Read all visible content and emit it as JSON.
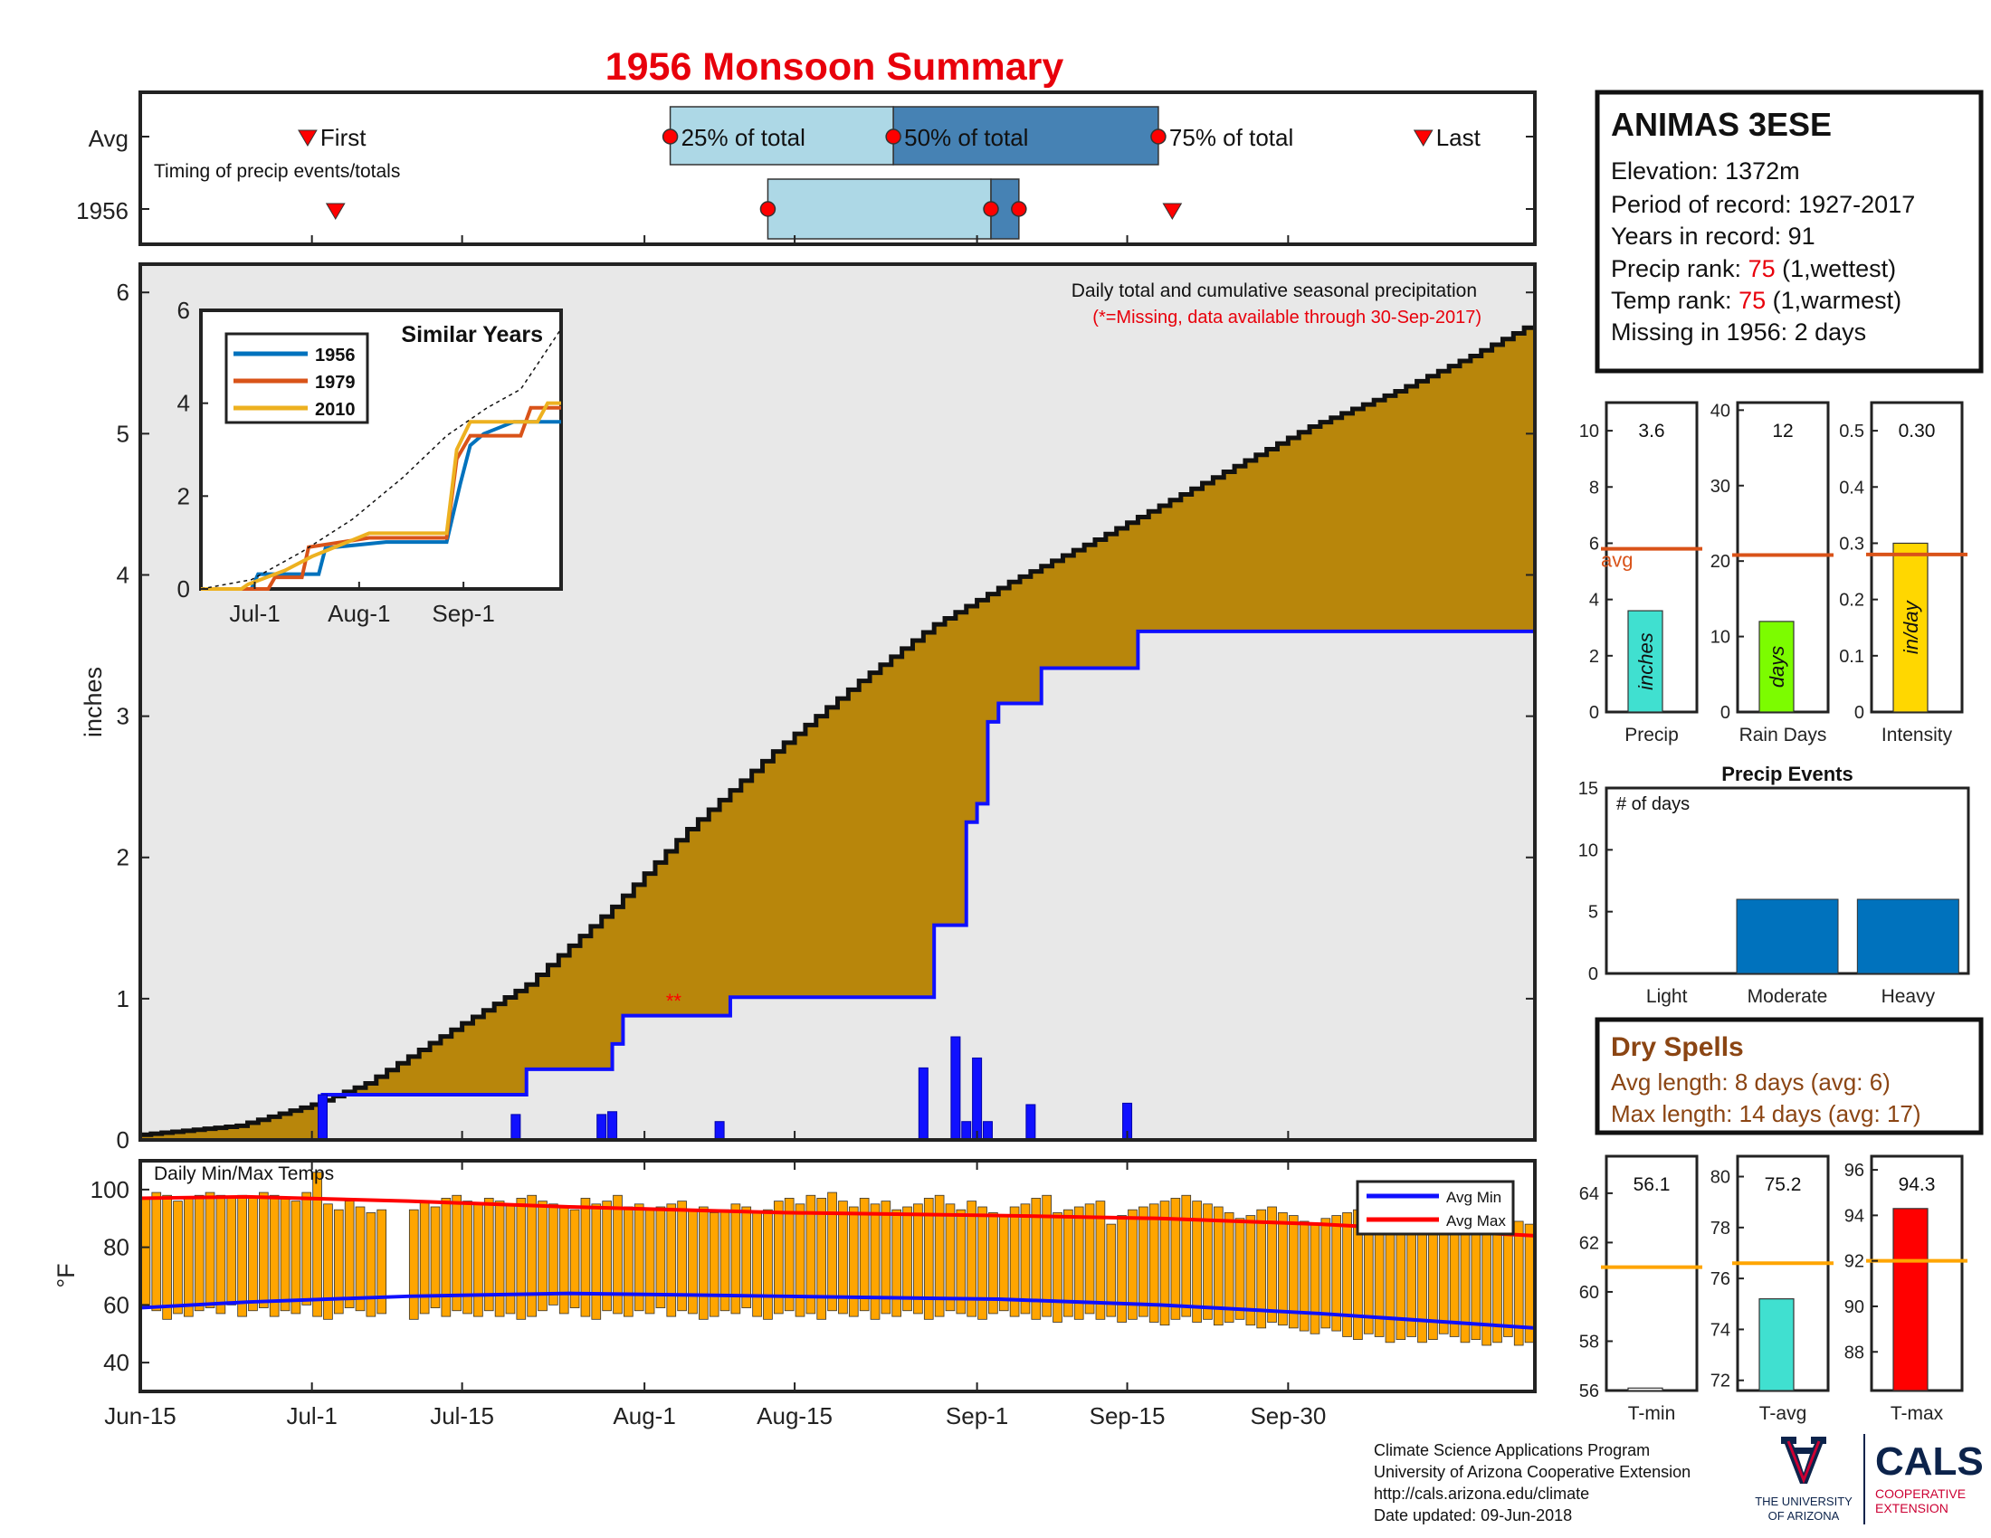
{
  "header": {
    "title": "1956 Monsoon Summary"
  },
  "timing": {
    "row_labels": [
      "Avg",
      "1956"
    ],
    "caption": "Timing of precip events/totals",
    "markers": {
      "first": "First",
      "last": "Last",
      "p25": "25% of total",
      "p50": "50% of total",
      "p75": "75% of total"
    },
    "avg": {
      "first": 12,
      "p25": 38,
      "p50": 54,
      "p75": 73,
      "last": 92
    },
    "year": {
      "first": 14,
      "p25": 45,
      "p50": 61,
      "p75": 63,
      "last": 74
    }
  },
  "main": {
    "caption": "Daily total and cumulative seasonal precipitation",
    "missing_note": "(*=Missing, data available through 30-Sep-2017)",
    "ylabel": "inches",
    "ylim": [
      0,
      6.2
    ],
    "yticks": [
      "0",
      "1",
      "2",
      "3",
      "4",
      "5",
      "6"
    ],
    "missing_mark": "**"
  },
  "date_axis": {
    "start": "Jun-15",
    "labels": [
      "Jun-15",
      "Jul-1",
      "Jul-15",
      "Aug-1",
      "Aug-15",
      "Sep-1",
      "Sep-15",
      "Sep-30"
    ]
  },
  "station": {
    "name": "ANIMAS 3ESE",
    "elevation": "Elevation: 1372m",
    "period": "Period of record: 1927-2017",
    "years": "Years in record: 91",
    "precip_rank_label": "Precip rank: ",
    "precip_rank": "75",
    "precip_rank_suffix": " (1,wettest)",
    "temp_rank_label": "Temp rank: ",
    "temp_rank": "75",
    "temp_rank_suffix": " (1,warmest)",
    "missing": "Missing in 1956: 2 days"
  },
  "mini_precip": [
    {
      "label": "Precip",
      "value_text": "3.6",
      "value": 3.6,
      "avg": 5.8,
      "ylim": [
        0,
        11
      ],
      "ticks": [
        "0",
        "2",
        "4",
        "6",
        "8",
        "10"
      ],
      "unit": "inches",
      "color": "#40E0D0",
      "avg_label": "avg"
    },
    {
      "label": "Rain Days",
      "value_text": "12",
      "value": 12,
      "avg": 20.8,
      "ylim": [
        0,
        41
      ],
      "ticks": [
        "0",
        "10",
        "20",
        "30",
        "40"
      ],
      "unit": "days",
      "color": "#7CFC00"
    },
    {
      "label": "Intensity",
      "value_text": "0.30",
      "value": 0.3,
      "avg": 0.28,
      "ylim": [
        0,
        0.55
      ],
      "ticks": [
        "0",
        "0.1",
        "0.2",
        "0.3",
        "0.4",
        "0.5"
      ],
      "unit": "in/day",
      "color": "#FFD700"
    }
  ],
  "events": {
    "title": "Precip Events",
    "ylabel": "# of days",
    "categories": [
      "Light",
      "Moderate",
      "Heavy"
    ],
    "values": [
      0,
      6,
      6
    ],
    "ylim": [
      0,
      15
    ],
    "ticks": [
      "0",
      "5",
      "10",
      "15"
    ],
    "color": "#0072BD"
  },
  "dry_spells": {
    "title": "Dry Spells",
    "avg_length": "Avg length: 8 days (avg: 6)",
    "max_length": "Max length: 14 days (avg: 17)"
  },
  "temps": {
    "caption": "Daily Min/Max Temps",
    "ylabel": "°F",
    "ylim": [
      30,
      110
    ],
    "ticks": [
      "40",
      "60",
      "80",
      "100"
    ],
    "legend": [
      "Avg Min",
      "Avg Max"
    ]
  },
  "mini_temps": [
    {
      "label": "T-min",
      "value_text": "56.1",
      "value": 56.1,
      "avg": 61.0,
      "ylim": [
        56,
        65.5
      ],
      "ticks": [
        "56",
        "58",
        "60",
        "62",
        "64"
      ],
      "color": "#ffffff"
    },
    {
      "label": "T-avg",
      "value_text": "75.2",
      "value": 75.2,
      "avg": 76.6,
      "ylim": [
        71.6,
        80.8
      ],
      "ticks": [
        "72",
        "74",
        "76",
        "78",
        "80"
      ],
      "color": "#40E0D0"
    },
    {
      "label": "T-max",
      "value_text": "94.3",
      "value": 94.3,
      "avg": 92.0,
      "ylim": [
        86.3,
        96.6
      ],
      "ticks": [
        "88",
        "90",
        "92",
        "94",
        "96"
      ],
      "color": "#ff0000"
    }
  ],
  "similar_years": {
    "title": "Similar Years",
    "ylim": [
      0,
      6
    ],
    "yticks": [
      "0",
      "2",
      "4",
      "6"
    ],
    "xticks": [
      "Jul-1",
      "Aug-1",
      "Sep-1"
    ],
    "series": [
      {
        "name": "1956",
        "color": "#0072BD"
      },
      {
        "name": "1979",
        "color": "#D95319"
      },
      {
        "name": "2010",
        "color": "#EDB120"
      }
    ]
  },
  "footer": {
    "lines": [
      "Climate Science Applications Program",
      "University of Arizona Cooperative Extension",
      "http://cals.arizona.edu/climate",
      " Date updated: 09-Jun-2018"
    ],
    "ua_logo": [
      "THE UNIVERSITY",
      "OF ARIZONA"
    ],
    "cals": "CALS",
    "cals_sub": [
      "COOPERATIVE",
      "EXTENSION"
    ]
  },
  "colors": {
    "cumulative": "#B8860B",
    "avg_cum": "#1010FF",
    "daily": "#1010FF",
    "panel_bg": "#E8E8E8",
    "title": "#E8000B",
    "temp_bar": "#FFA500",
    "avg_line": "#D95319",
    "rank": "#E8000B",
    "dry": "#8B4513"
  },
  "chart_data": {
    "type": "area",
    "title": "1956 Monsoon Summary",
    "xlabel": "",
    "ylabel": "inches",
    "x_range": [
      "Jun-15",
      "Sep-30"
    ],
    "ylim": [
      0,
      6.2
    ],
    "series": [
      {
        "name": "Avg cumulative precip",
        "points": [
          [
            0,
            0.03
          ],
          [
            10,
            0.1
          ],
          [
            17,
            0.25
          ],
          [
            22,
            0.4
          ],
          [
            30,
            0.78
          ],
          [
            37,
            1.1
          ],
          [
            45,
            1.65
          ],
          [
            52,
            2.2
          ],
          [
            60,
            2.75
          ],
          [
            68,
            3.25
          ],
          [
            75,
            3.65
          ],
          [
            82,
            3.95
          ],
          [
            90,
            4.25
          ],
          [
            100,
            4.65
          ],
          [
            110,
            5.05
          ],
          [
            118,
            5.3
          ],
          [
            125,
            5.55
          ],
          [
            130,
            5.75
          ]
        ]
      },
      {
        "name": "1956 cumulative precip",
        "points": [
          [
            0,
            0
          ],
          [
            16,
            0
          ],
          [
            17,
            0.32
          ],
          [
            35,
            0.32
          ],
          [
            36,
            0.5
          ],
          [
            43,
            0.5
          ],
          [
            44,
            0.68
          ],
          [
            45,
            0.88
          ],
          [
            54,
            0.88
          ],
          [
            55,
            1.01
          ],
          [
            73,
            1.01
          ],
          [
            74,
            1.52
          ],
          [
            76,
            1.52
          ],
          [
            77,
            2.25
          ],
          [
            78,
            2.38
          ],
          [
            79,
            2.96
          ],
          [
            80,
            3.09
          ],
          [
            83,
            3.09
          ],
          [
            84,
            3.34
          ],
          [
            92,
            3.34
          ],
          [
            93,
            3.6
          ],
          [
            130,
            3.6
          ]
        ]
      },
      {
        "name": "1956 daily precip",
        "points": [
          [
            17,
            0.32
          ],
          [
            35,
            0.18
          ],
          [
            43,
            0.18
          ],
          [
            44,
            0.2
          ],
          [
            54,
            0.13
          ],
          [
            73,
            0.51
          ],
          [
            76,
            0.73
          ],
          [
            77,
            0.13
          ],
          [
            78,
            0.58
          ],
          [
            79,
            0.13
          ],
          [
            83,
            0.25
          ],
          [
            92,
            0.26
          ]
        ]
      }
    ],
    "temps": {
      "ylim": [
        30,
        110
      ],
      "avg_min": [
        [
          0,
          59
        ],
        [
          10,
          61
        ],
        [
          25,
          63
        ],
        [
          40,
          64
        ],
        [
          60,
          63
        ],
        [
          80,
          62
        ],
        [
          95,
          60
        ],
        [
          110,
          57
        ],
        [
          130,
          52
        ]
      ],
      "avg_max": [
        [
          0,
          97
        ],
        [
          10,
          97.5
        ],
        [
          25,
          96
        ],
        [
          40,
          94
        ],
        [
          60,
          92
        ],
        [
          80,
          91
        ],
        [
          95,
          90
        ],
        [
          110,
          88
        ],
        [
          130,
          84
        ]
      ],
      "daily_min": [
        59,
        58,
        55,
        57,
        56,
        58,
        59,
        57,
        60,
        56,
        58,
        59,
        56,
        58,
        57,
        60,
        56,
        55,
        57,
        59,
        58,
        56,
        57,
        null,
        null,
        55,
        57,
        59,
        56,
        58,
        57,
        56,
        58,
        56,
        57,
        55,
        56,
        58,
        60,
        57,
        59,
        56,
        55,
        58,
        57,
        56,
        58,
        57,
        59,
        56,
        58,
        57,
        55,
        56,
        58,
        57,
        59,
        56,
        55,
        57,
        58,
        56,
        57,
        55,
        58,
        57,
        56,
        58,
        55,
        57,
        56,
        58,
        57,
        55,
        56,
        58,
        57,
        56,
        55,
        57,
        58,
        56,
        57,
        55,
        56,
        54,
        56,
        55,
        57,
        55,
        56,
        54,
        55,
        56,
        54,
        53,
        55,
        56,
        54,
        55,
        53,
        54,
        55,
        53,
        52,
        54,
        53,
        52,
        51,
        50,
        52,
        51,
        49,
        48,
        50,
        49,
        47,
        48,
        49,
        47,
        48,
        50,
        49,
        47,
        48,
        46,
        47,
        49,
        46,
        47,
        48
      ],
      "daily_max": [
        97,
        99,
        98,
        96,
        97,
        98,
        99,
        98,
        97,
        98,
        97,
        99,
        98,
        97,
        96,
        99,
        106,
        95,
        93,
        96,
        94,
        92,
        93,
        null,
        null,
        93,
        96,
        94,
        97,
        98,
        96,
        95,
        97,
        96,
        95,
        97,
        98,
        96,
        95,
        94,
        93,
        97,
        95,
        96,
        98,
        94,
        95,
        93,
        94,
        95,
        96,
        93,
        94,
        92,
        93,
        95,
        94,
        92,
        93,
        96,
        97,
        95,
        98,
        97,
        99,
        96,
        94,
        97,
        95,
        96,
        93,
        94,
        95,
        97,
        98,
        95,
        93,
        96,
        94,
        92,
        91,
        94,
        95,
        97,
        98,
        92,
        93,
        94,
        95,
        96,
        88,
        91,
        93,
        94,
        95,
        96,
        97,
        98,
        96,
        95,
        94,
        92,
        90,
        91,
        93,
        94,
        92,
        91,
        89,
        88,
        90,
        91,
        92,
        93,
        94,
        95,
        96,
        93,
        92,
        90,
        91,
        92,
        93,
        91,
        89,
        90,
        88,
        87,
        89,
        88,
        92
      ]
    },
    "similar_years": {
      "x_months": [
        "Jul-1",
        "Aug-1",
        "Sep-1"
      ],
      "series": [
        {
          "name": "1956",
          "points": [
            [
              0,
              0
            ],
            [
              15,
              0
            ],
            [
              17,
              0.32
            ],
            [
              35,
              0.32
            ],
            [
              37,
              0.88
            ],
            [
              55,
              1.01
            ],
            [
              73,
              1.01
            ],
            [
              77,
              2.25
            ],
            [
              80,
              3.09
            ],
            [
              84,
              3.34
            ],
            [
              93,
              3.6
            ],
            [
              107,
              3.6
            ]
          ]
        },
        {
          "name": "1979",
          "points": [
            [
              0,
              0
            ],
            [
              20,
              0
            ],
            [
              22,
              0.25
            ],
            [
              30,
              0.25
            ],
            [
              32,
              0.9
            ],
            [
              50,
              1.1
            ],
            [
              73,
              1.1
            ],
            [
              76,
              2.8
            ],
            [
              80,
              3.3
            ],
            [
              95,
              3.3
            ],
            [
              98,
              3.9
            ],
            [
              107,
              3.9
            ]
          ]
        },
        {
          "name": "2010",
          "points": [
            [
              0,
              0
            ],
            [
              12,
              0
            ],
            [
              14,
              0.1
            ],
            [
              25,
              0.4
            ],
            [
              33,
              0.7
            ],
            [
              50,
              1.2
            ],
            [
              73,
              1.2
            ],
            [
              76,
              3.0
            ],
            [
              80,
              3.6
            ],
            [
              100,
              3.6
            ],
            [
              103,
              4.0
            ],
            [
              107,
              4.0
            ]
          ]
        },
        {
          "name": "Avg",
          "points": [
            [
              0,
              0
            ],
            [
              15,
              0.2
            ],
            [
              30,
              0.8
            ],
            [
              45,
              1.5
            ],
            [
              60,
              2.4
            ],
            [
              73,
              3.3
            ],
            [
              85,
              3.9
            ],
            [
              95,
              4.3
            ],
            [
              107,
              5.6
            ]
          ]
        }
      ]
    },
    "precip_events": {
      "categories": [
        "Light",
        "Moderate",
        "Heavy"
      ],
      "values": [
        0,
        6,
        6
      ]
    }
  }
}
